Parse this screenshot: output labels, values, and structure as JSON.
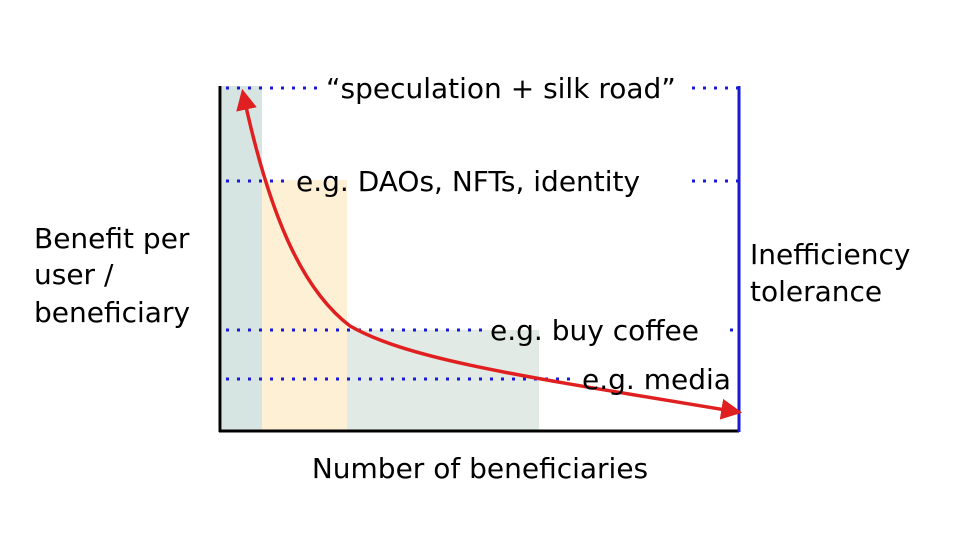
{
  "chart_data": {
    "type": "area",
    "title": "",
    "xlabel": "Number of beneficiaries",
    "ylabel_lines": [
      "Benefit per",
      "user /",
      "beneficiary"
    ],
    "right_label_lines": [
      "Inefficiency",
      "tolerance"
    ],
    "tiers": [
      {
        "label": "“speculation + silk road”"
      },
      {
        "label": "e.g. DAOs, NFTs, identity"
      },
      {
        "label": "e.g. buy coffee"
      },
      {
        "label": "e.g. media"
      }
    ]
  },
  "colors": {
    "axis": "#000000",
    "right_axis": "#1a1ad6",
    "dotted_lines": "#1a1ad6",
    "curve": "#e02020",
    "band_1": "#d6e4e2",
    "band_2": "#fdf0d4",
    "band_3": "#e2eae5"
  }
}
